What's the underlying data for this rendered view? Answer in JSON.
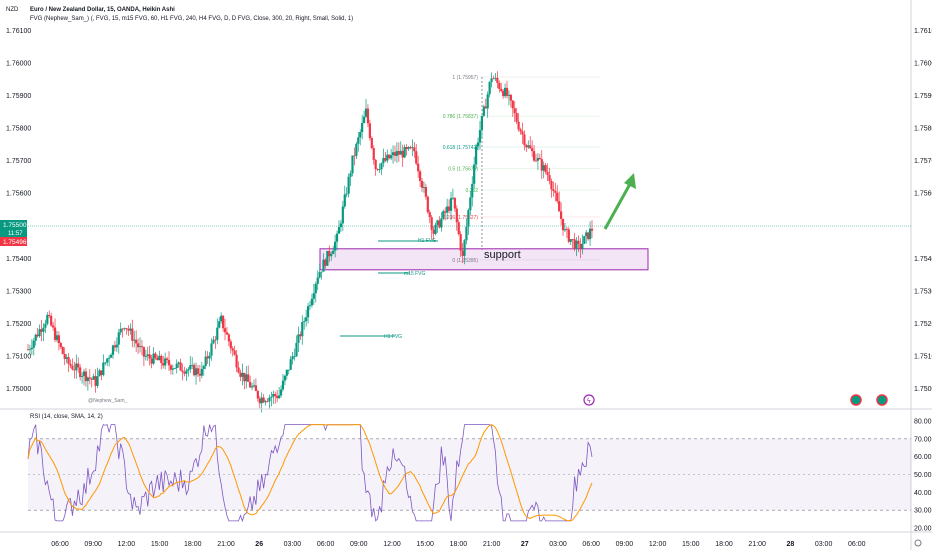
{
  "header": {
    "currency": "NZD",
    "line1": "Euro / New Zealand Dollar, 15, OANDA, Heikin Ashi",
    "line2": "FVG (Nephew_Sam_) (, FVG, 15, m15 FVG, 60, H1 FVG, 240, H4 FVG, D, D FVG, Close, 300, 20, Right, Small, Solid, 1)"
  },
  "price_axis": {
    "labels": [
      "1.76100",
      "1.76000",
      "1.75900",
      "1.75800",
      "1.75700",
      "1.75600",
      "1.75400",
      "1.75300",
      "1.75200",
      "1.75100",
      "1.75000"
    ],
    "current_price": "1.75500",
    "countdown": "11:57",
    "prev_price": "1.75496"
  },
  "time_axis": {
    "labels": [
      "06:00",
      "09:00",
      "12:00",
      "15:00",
      "18:00",
      "21:00",
      "26",
      "03:00",
      "06:00",
      "09:00",
      "12:00",
      "15:00",
      "18:00",
      "21:00",
      "27",
      "03:00",
      "06:00",
      "09:00",
      "12:00",
      "15:00",
      "18:00",
      "21:00",
      "28",
      "03:00",
      "06:00"
    ],
    "bold": [
      "26",
      "27",
      "28"
    ]
  },
  "fib_levels": [
    {
      "ratio": "1",
      "price": "1.75957",
      "label": "1 (1.75957)",
      "color": "#787b86"
    },
    {
      "ratio": "0.786",
      "price": "1.75837",
      "label": "0.786 (1.75837)",
      "color": "#4caf50"
    },
    {
      "ratio": "0.618",
      "price": "1.75742",
      "label": "0.618 (1.75742)",
      "color": "#089981"
    },
    {
      "ratio": "0.5",
      "price": "1.75676",
      "label": "0.5 (1.75676)",
      "color": "#4caf50"
    },
    {
      "ratio": "0.382",
      "price": "1.75610",
      "label": "0.382",
      "color": "#4caf50"
    },
    {
      "ratio": "0.236",
      "price": "1.75527",
      "label": "0.236 (1.75527)",
      "color": "#f23645"
    },
    {
      "ratio": "0",
      "price": "1.75395",
      "label": "0 (1.75395)",
      "color": "#787b86"
    }
  ],
  "annotations": {
    "support": "support",
    "fvg_labels": [
      "H1 FVG",
      "m15 FVG",
      "H1 FVG",
      "m15 FVG"
    ],
    "watermark": "@Nephew_Sam_",
    "event_icon": "lightning-icon"
  },
  "rsi": {
    "title": "RSI (14, close, SMA, 14, 2)",
    "labels": [
      "80.00",
      "70.00",
      "60.00",
      "50.00",
      "40.00",
      "30.00",
      "20.00"
    ]
  },
  "colors": {
    "up": "#089981",
    "down": "#f23645",
    "support_box": "#9c27b0",
    "arrow": "#4caf50",
    "rsi_line": "#7e57c2",
    "rsi_ma": "#ff9800",
    "price_line": "#089981"
  },
  "chart_data": {
    "type": "candlestick",
    "title": "Euro / New Zealand Dollar, 15, OANDA, Heikin Ashi",
    "y_range": [
      1.7494,
      1.7612
    ],
    "current_price": 1.755,
    "support_zone": [
      1.7538,
      1.7542
    ],
    "fib_high": 1.75957,
    "fib_low": 1.75395,
    "price_path_anchors": [
      [
        0,
        1.7512
      ],
      [
        10,
        1.7522
      ],
      [
        20,
        1.7508
      ],
      [
        35,
        1.7502
      ],
      [
        50,
        1.752
      ],
      [
        60,
        1.751
      ],
      [
        75,
        1.7507
      ],
      [
        90,
        1.7505
      ],
      [
        100,
        1.7521
      ],
      [
        110,
        1.7505
      ],
      [
        120,
        1.7497
      ],
      [
        130,
        1.7498
      ],
      [
        140,
        1.7515
      ],
      [
        150,
        1.7535
      ],
      [
        160,
        1.7546
      ],
      [
        168,
        1.757
      ],
      [
        175,
        1.7585
      ],
      [
        180,
        1.7568
      ],
      [
        190,
        1.7572
      ],
      [
        200,
        1.7573
      ],
      [
        210,
        1.7548
      ],
      [
        220,
        1.7558
      ],
      [
        225,
        1.754
      ],
      [
        232,
        1.7574
      ],
      [
        240,
        1.7596
      ],
      [
        248,
        1.759
      ],
      [
        258,
        1.7575
      ],
      [
        270,
        1.7565
      ],
      [
        278,
        1.7548
      ],
      [
        285,
        1.7543
      ],
      [
        292,
        1.7549
      ]
    ],
    "rsi_range": [
      20,
      80
    ],
    "rsi_band": [
      30,
      70
    ]
  }
}
